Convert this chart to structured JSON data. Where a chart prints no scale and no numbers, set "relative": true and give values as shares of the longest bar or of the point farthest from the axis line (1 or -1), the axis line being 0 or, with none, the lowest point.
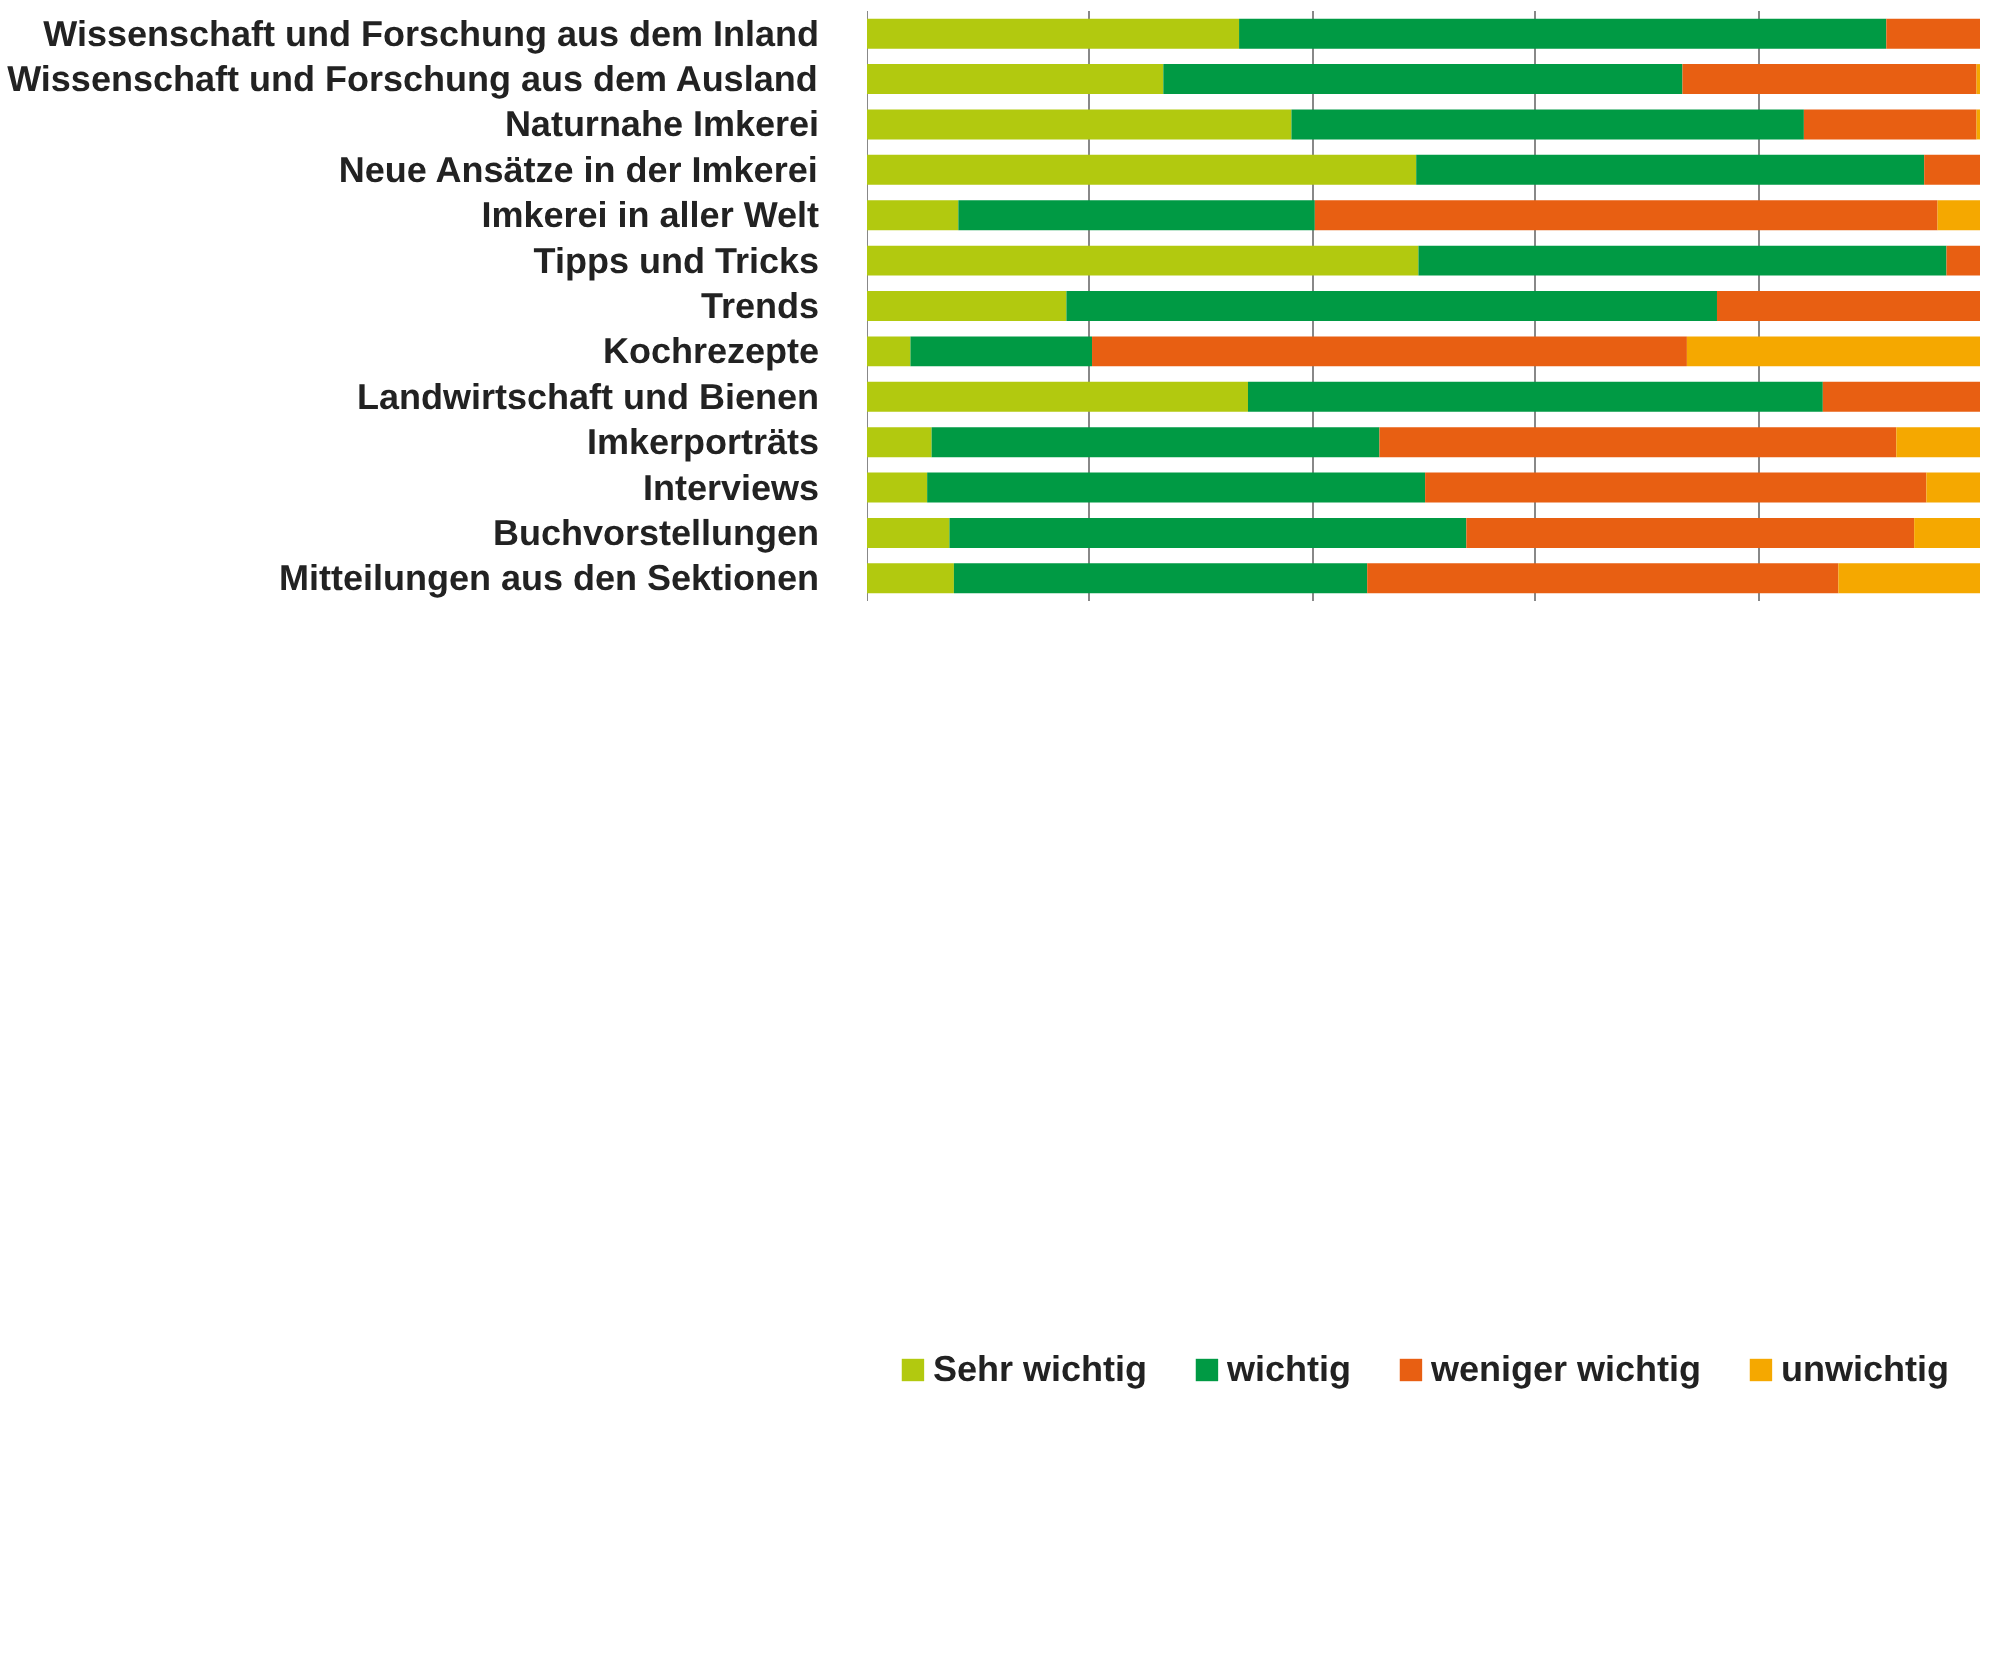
{
  "chart_data": {
    "type": "bar",
    "orientation": "horizontal",
    "stacked": true,
    "relative": true,
    "grid": "x",
    "legend": "bottom",
    "tick_labels": "y",
    "categories": [
      "Wissenschaft und Forschung aus dem Inland",
      "Wissenschaft und Forschung aus dem Ausland",
      "Naturnahe Imkerei",
      "Neue Ansätze in der Imkerei",
      "Imkerei in aller Welt",
      "Tipps und Tricks",
      "Trends",
      "Kochrezepte",
      "Landwirtschaft und Bienen",
      "Imkerporträts",
      "Interviews",
      "Buchvorstellungen",
      "Mitteilungen aus den Sektionen"
    ],
    "series": [
      {
        "name": "Sehr wichtig",
        "color": "#b2c90f",
        "values": [
          0.334,
          0.266,
          0.381,
          0.493,
          0.082,
          0.495,
          0.179,
          0.039,
          0.342,
          0.058,
          0.054,
          0.074,
          0.078
        ]
      },
      {
        "name": "wichtig",
        "color": "#009a44",
        "values": [
          0.581,
          0.466,
          0.46,
          0.456,
          0.32,
          0.474,
          0.584,
          0.163,
          0.516,
          0.402,
          0.447,
          0.464,
          0.371
        ]
      },
      {
        "name": "weniger wichtig",
        "color": "#e85f12",
        "values": [
          0.085,
          0.264,
          0.155,
          0.051,
          0.559,
          0.031,
          0.237,
          0.534,
          0.142,
          0.464,
          0.45,
          0.402,
          0.423
        ]
      },
      {
        "name": "unwichtig",
        "color": "#f5a800",
        "values": [
          0,
          0.004,
          0.004,
          0,
          0.039,
          0,
          0,
          0.264,
          0,
          0.076,
          0.049,
          0.06,
          0.128
        ]
      }
    ]
  }
}
